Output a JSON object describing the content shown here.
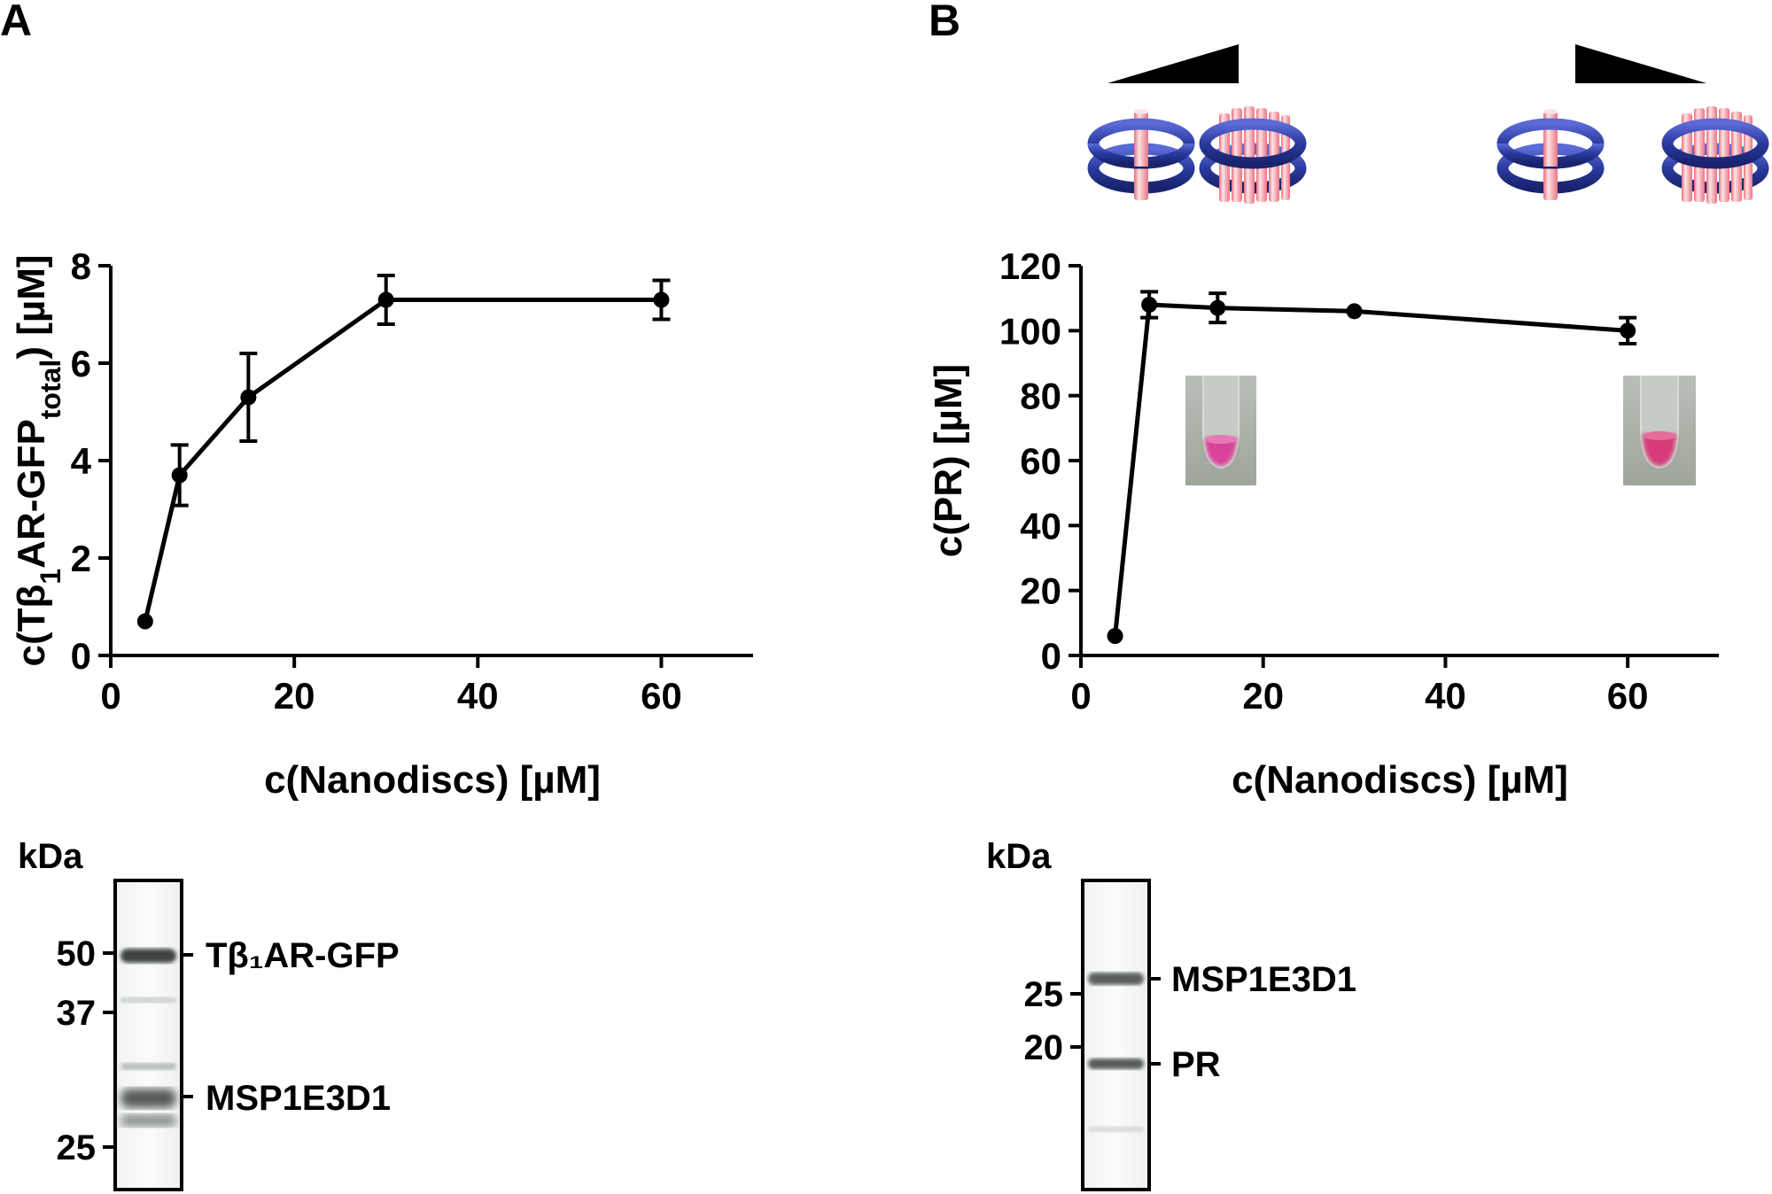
{
  "panels": {
    "A": {
      "letter": "A"
    },
    "B": {
      "letter": "B"
    }
  },
  "chart_data": [
    {
      "id": "A",
      "type": "line",
      "title": "",
      "xlabel": "c(Nanodiscs) [µM]",
      "ylabel": "c(Tβ1AR-GFPtotal) [µM]",
      "ylabel_parts": {
        "pre": "c(Tβ",
        "sub1": "1",
        "mid": "AR-GFP",
        "sub2": "total",
        "post": ") [µM]"
      },
      "xlim": [
        0,
        70
      ],
      "ylim": [
        0,
        8
      ],
      "xticks": [
        0,
        20,
        40,
        60
      ],
      "yticks": [
        0,
        2,
        4,
        6,
        8
      ],
      "series": [
        {
          "name": "Tβ1AR-GFP",
          "x": [
            3.75,
            7.5,
            15,
            30,
            60
          ],
          "y": [
            0.7,
            3.7,
            5.3,
            7.3,
            7.3
          ],
          "err": [
            0,
            0.62,
            0.9,
            0.5,
            0.4
          ]
        }
      ]
    },
    {
      "id": "B",
      "type": "line",
      "title": "",
      "xlabel": "c(Nanodiscs) [µM]",
      "ylabel": "c(PR) [µM]",
      "xlim": [
        0,
        70
      ],
      "ylim": [
        0,
        120
      ],
      "xticks": [
        0,
        20,
        40,
        60
      ],
      "yticks": [
        0,
        20,
        40,
        60,
        80,
        100,
        120
      ],
      "series": [
        {
          "name": "PR",
          "x": [
            3.75,
            7.5,
            15,
            30,
            60
          ],
          "y": [
            6,
            108,
            107,
            106,
            100
          ],
          "err": [
            0,
            4,
            4.5,
            0,
            4
          ]
        }
      ]
    }
  ],
  "gels": {
    "A": {
      "unit": "kDa",
      "markers": [
        "50",
        "37",
        "25"
      ],
      "marker_values": [
        50,
        37,
        25
      ],
      "bands": [
        {
          "label": "Tβ₁AR-GFP"
        },
        {
          "label": "MSP1E3D1"
        }
      ]
    },
    "B": {
      "unit": "kDa",
      "markers": [
        "25",
        "20"
      ],
      "marker_values": [
        25,
        20
      ],
      "bands": [
        {
          "label": "MSP1E3D1"
        },
        {
          "label": "PR"
        }
      ]
    }
  },
  "colors": {
    "nanodisc_ring": "#2a3a9e",
    "protein_cylinder": "#f08a94",
    "tube_pink": "#d8439a",
    "tube_bg": "#a9b0a6"
  }
}
